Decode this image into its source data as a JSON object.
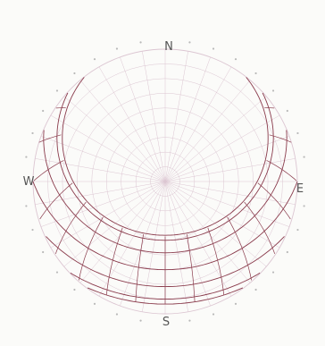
{
  "diagram": {
    "type": "sun-path diagram",
    "cardinals": {
      "north": "N",
      "south": "S",
      "east": "E",
      "west": "W"
    },
    "colors": {
      "grid": "#dcc6d2",
      "sun_path": "#8a3b4c",
      "label": "#555555",
      "background": "#fbfbf9"
    }
  }
}
